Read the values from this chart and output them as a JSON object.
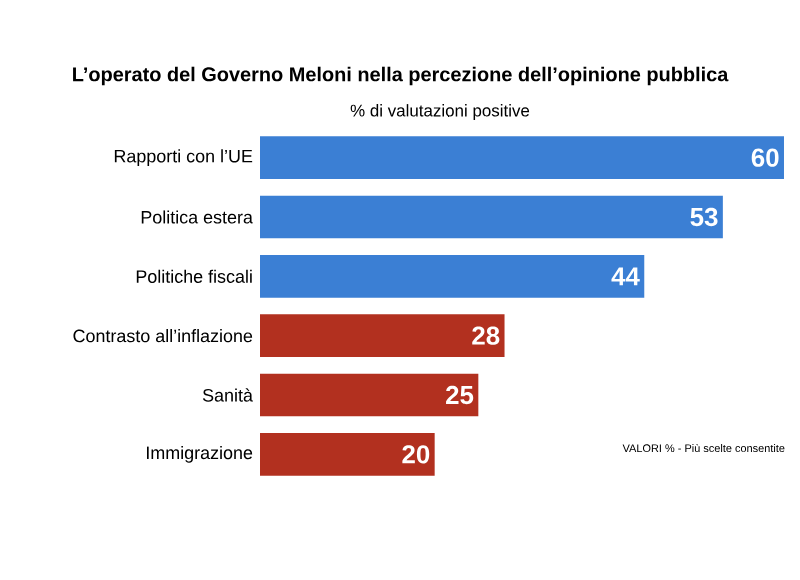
{
  "chart_data": {
    "type": "bar",
    "orientation": "horizontal",
    "title": "L’operato del Governo Meloni nella percezione dell’opinione pubblica",
    "subtitle": "% di valutazioni positive",
    "categories": [
      "Rapporti con l’UE",
      "Politica estera",
      "Politiche fiscali",
      "Contrasto all’inflazione",
      "Sanità",
      "Immigrazione"
    ],
    "values": [
      60,
      53,
      44,
      28,
      25,
      20
    ],
    "colors": [
      "#3b7fd4",
      "#3b7fd4",
      "#3b7fd4",
      "#b2301f",
      "#b2301f",
      "#b2301f"
    ],
    "data_labels": true,
    "annotations": [
      "VALORI % - Più scelte consentite"
    ]
  }
}
